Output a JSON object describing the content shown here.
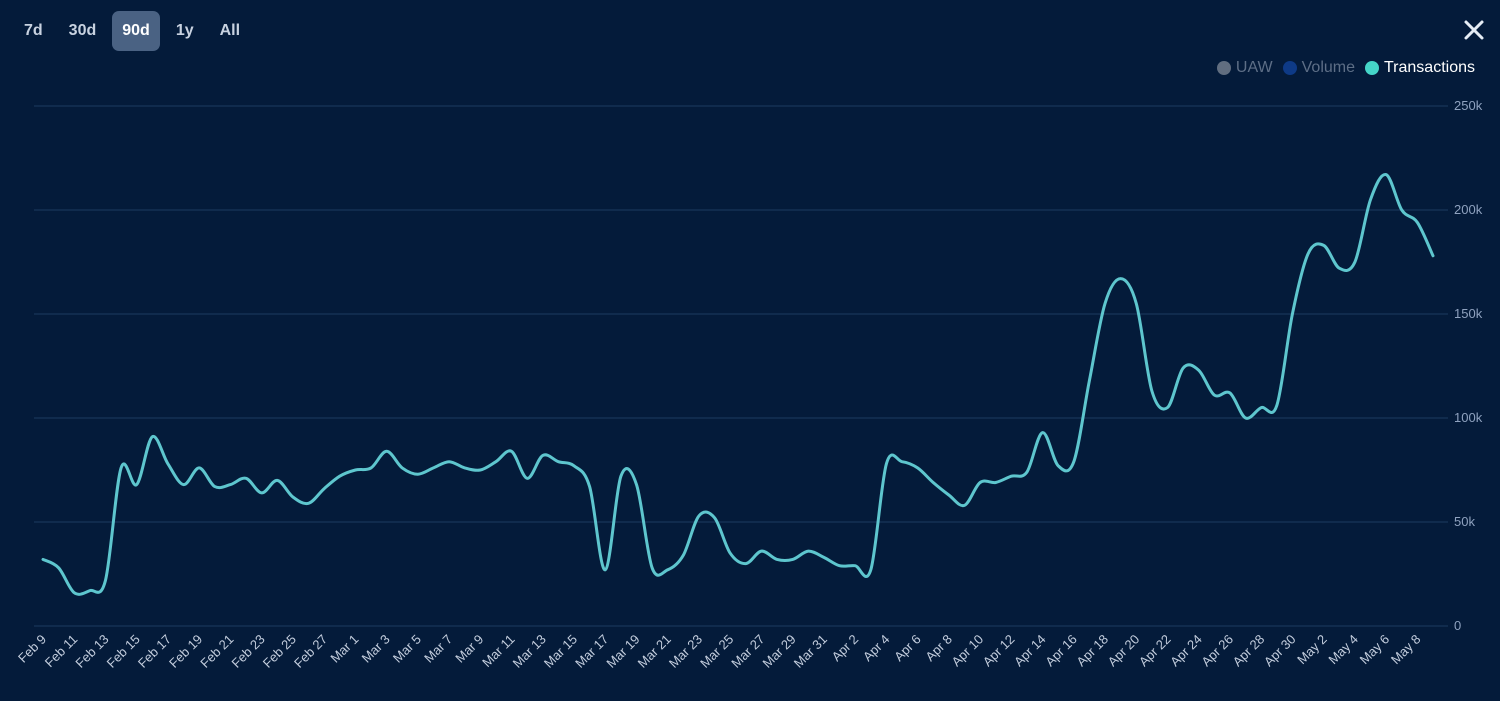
{
  "range_tabs": [
    {
      "label": "7d",
      "active": false
    },
    {
      "label": "30d",
      "active": false
    },
    {
      "label": "90d",
      "active": true
    },
    {
      "label": "1y",
      "active": false
    },
    {
      "label": "All",
      "active": false
    }
  ],
  "close_icon": "close-icon",
  "legend": [
    {
      "label": "UAW",
      "color": "#616e80",
      "active": false
    },
    {
      "label": "Volume",
      "color": "#0e3a86",
      "active": false
    },
    {
      "label": "Transactions",
      "color": "#45d5c8",
      "active": true
    }
  ],
  "chart_data": {
    "type": "line",
    "title": "",
    "xlabel": "",
    "ylabel": "",
    "ylim": [
      0,
      250000
    ],
    "ytick_values": [
      0,
      50000,
      100000,
      150000,
      200000,
      250000
    ],
    "ytick_labels": [
      "0",
      "50k",
      "100k",
      "150k",
      "200k",
      "250k"
    ],
    "grid": true,
    "line_color": "#5ec6ce",
    "x": [
      "Feb 9",
      "Feb 10",
      "Feb 11",
      "Feb 12",
      "Feb 13",
      "Feb 14",
      "Feb 15",
      "Feb 16",
      "Feb 17",
      "Feb 18",
      "Feb 19",
      "Feb 20",
      "Feb 21",
      "Feb 22",
      "Feb 23",
      "Feb 24",
      "Feb 25",
      "Feb 26",
      "Feb 27",
      "Feb 28",
      "Mar 1",
      "Mar 2",
      "Mar 3",
      "Mar 4",
      "Mar 5",
      "Mar 6",
      "Mar 7",
      "Mar 8",
      "Mar 9",
      "Mar 10",
      "Mar 11",
      "Mar 12",
      "Mar 13",
      "Mar 14",
      "Mar 15",
      "Mar 16",
      "Mar 17",
      "Mar 18",
      "Mar 19",
      "Mar 20",
      "Mar 21",
      "Mar 22",
      "Mar 23",
      "Mar 24",
      "Mar 25",
      "Mar 26",
      "Mar 27",
      "Mar 28",
      "Mar 29",
      "Mar 30",
      "Mar 31",
      "Apr 1",
      "Apr 2",
      "Apr 3",
      "Apr 4",
      "Apr 5",
      "Apr 6",
      "Apr 7",
      "Apr 8",
      "Apr 9",
      "Apr 10",
      "Apr 11",
      "Apr 12",
      "Apr 13",
      "Apr 14",
      "Apr 15",
      "Apr 16",
      "Apr 17",
      "Apr 18",
      "Apr 19",
      "Apr 20",
      "Apr 21",
      "Apr 22",
      "Apr 23",
      "Apr 24",
      "Apr 25",
      "Apr 26",
      "Apr 27",
      "Apr 28",
      "Apr 29",
      "Apr 30",
      "May 1",
      "May 2",
      "May 3",
      "May 4",
      "May 5",
      "May 6",
      "May 7",
      "May 8",
      "May 9"
    ],
    "x_tick_labels": [
      "Feb 9",
      "Feb 11",
      "Feb 13",
      "Feb 15",
      "Feb 17",
      "Feb 19",
      "Feb 21",
      "Feb 23",
      "Feb 25",
      "Feb 27",
      "Mar 1",
      "Mar 3",
      "Mar 5",
      "Mar 7",
      "Mar 9",
      "Mar 11",
      "Mar 13",
      "Mar 15",
      "Mar 17",
      "Mar 19",
      "Mar 21",
      "Mar 23",
      "Mar 25",
      "Mar 27",
      "Mar 29",
      "Mar 31",
      "Apr 2",
      "Apr 4",
      "Apr 6",
      "Apr 8",
      "Apr 10",
      "Apr 12",
      "Apr 14",
      "Apr 16",
      "Apr 18",
      "Apr 20",
      "Apr 22",
      "Apr 24",
      "Apr 26",
      "Apr 28",
      "Apr 30",
      "May 2",
      "May 4",
      "May 6",
      "May 8"
    ],
    "series": [
      {
        "name": "Transactions",
        "values": [
          32000,
          28000,
          16000,
          17000,
          22000,
          76000,
          68000,
          91000,
          78000,
          68000,
          76000,
          67000,
          68000,
          71000,
          64000,
          70000,
          62000,
          59000,
          66000,
          72000,
          75000,
          76000,
          84000,
          76000,
          73000,
          76000,
          79000,
          76000,
          75000,
          79000,
          84000,
          71000,
          82000,
          79000,
          77000,
          67000,
          27000,
          72000,
          68000,
          28000,
          27000,
          34000,
          53000,
          52000,
          35000,
          30000,
          36000,
          32000,
          32000,
          36000,
          33000,
          29000,
          29000,
          27000,
          78000,
          79000,
          76000,
          69000,
          63000,
          58000,
          69000,
          69000,
          72000,
          74000,
          93000,
          77000,
          79000,
          118000,
          155000,
          167000,
          155000,
          113000,
          105000,
          124000,
          123000,
          111000,
          112000,
          100000,
          105000,
          106000,
          150000,
          179000,
          183000,
          172000,
          175000,
          205000,
          217000,
          200000,
          194000,
          178000
        ]
      }
    ]
  }
}
